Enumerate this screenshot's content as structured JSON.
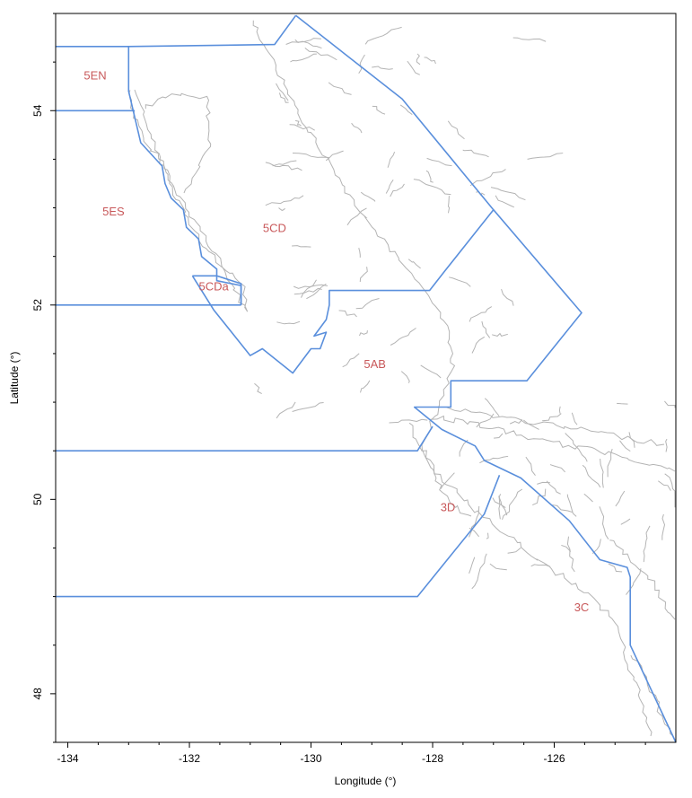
{
  "chart_data": {
    "type": "map",
    "xlabel": "Longitude (°)",
    "ylabel": "Latitude (°)",
    "xlim": [
      -134.2,
      -124.0
    ],
    "ylim": [
      47.5,
      55.0
    ],
    "xticks": [
      -134,
      -132,
      -130,
      -128,
      -126
    ],
    "yticks": [
      48,
      50,
      52,
      54
    ],
    "grid": false,
    "label_color": "#c8585a",
    "boundary_color": "#5a8fdc",
    "coast_color": "#b4b4b4",
    "areas": [
      {
        "name": "5EN",
        "lon": -133.55,
        "lat": 54.32
      },
      {
        "name": "5ES",
        "lon": -133.25,
        "lat": 52.92
      },
      {
        "name": "5CD",
        "lon": -130.6,
        "lat": 52.75
      },
      {
        "name": "5CDa",
        "lon": -131.6,
        "lat": 52.15
      },
      {
        "name": "5AB",
        "lon": -128.95,
        "lat": 51.35
      },
      {
        "name": "3D",
        "lon": -127.75,
        "lat": 49.88
      },
      {
        "name": "3C",
        "lon": -125.55,
        "lat": 48.85
      }
    ],
    "boundaries": [
      [
        [
          -134.2,
          54.66
        ],
        [
          -133.0,
          54.66
        ],
        [
          -130.6,
          54.68
        ],
        [
          -130.25,
          54.98
        ]
      ],
      [
        [
          -134.2,
          54.0
        ],
        [
          -132.9,
          54.0
        ]
      ],
      [
        [
          -133.0,
          54.66
        ],
        [
          -133.0,
          54.2
        ],
        [
          -132.8,
          53.67
        ],
        [
          -132.45,
          53.43
        ],
        [
          -132.4,
          53.25
        ],
        [
          -132.3,
          53.1
        ],
        [
          -132.1,
          52.98
        ],
        [
          -132.05,
          52.8
        ],
        [
          -131.85,
          52.68
        ],
        [
          -131.8,
          52.5
        ],
        [
          -131.55,
          52.37
        ],
        [
          -131.55,
          52.25
        ],
        [
          -131.15,
          52.2
        ],
        [
          -131.15,
          52.0
        ]
      ],
      [
        [
          -134.2,
          52.0
        ],
        [
          -131.15,
          52.0
        ]
      ],
      [
        [
          -131.95,
          52.3
        ],
        [
          -131.55,
          52.3
        ],
        [
          -131.15,
          52.22
        ],
        [
          -131.15,
          52.0
        ]
      ],
      [
        [
          -131.95,
          52.3
        ],
        [
          -131.6,
          51.95
        ],
        [
          -131.0,
          51.48
        ],
        [
          -130.8,
          51.55
        ],
        [
          -130.3,
          51.3
        ],
        [
          -130.0,
          51.55
        ],
        [
          -129.85,
          51.55
        ],
        [
          -129.75,
          51.72
        ],
        [
          -129.95,
          51.68
        ],
        [
          -129.75,
          51.85
        ],
        [
          -129.7,
          52.0
        ],
        [
          -129.7,
          52.15
        ],
        [
          -128.05,
          52.15
        ],
        [
          -127.8,
          52.35
        ],
        [
          -127.0,
          52.98
        ],
        [
          -128.5,
          54.12
        ],
        [
          -130.25,
          54.98
        ]
      ],
      [
        [
          -127.0,
          52.98
        ],
        [
          -125.55,
          51.92
        ],
        [
          -126.45,
          51.22
        ],
        [
          -127.7,
          51.22
        ],
        [
          -127.7,
          50.95
        ],
        [
          -128.3,
          50.95
        ],
        [
          -127.85,
          50.72
        ],
        [
          -127.3,
          50.55
        ],
        [
          -127.15,
          50.4
        ],
        [
          -126.55,
          50.22
        ],
        [
          -125.75,
          49.78
        ],
        [
          -125.25,
          49.38
        ],
        [
          -124.8,
          49.3
        ],
        [
          -124.75,
          49.2
        ],
        [
          -124.75,
          48.5
        ],
        [
          -124.0,
          47.5
        ]
      ],
      [
        [
          -134.2,
          50.5
        ],
        [
          -128.25,
          50.5
        ],
        [
          -128.0,
          50.75
        ]
      ],
      [
        [
          -126.9,
          50.25
        ],
        [
          -127.15,
          49.85
        ],
        [
          -128.25,
          49.0
        ],
        [
          -134.2,
          49.0
        ]
      ]
    ]
  }
}
